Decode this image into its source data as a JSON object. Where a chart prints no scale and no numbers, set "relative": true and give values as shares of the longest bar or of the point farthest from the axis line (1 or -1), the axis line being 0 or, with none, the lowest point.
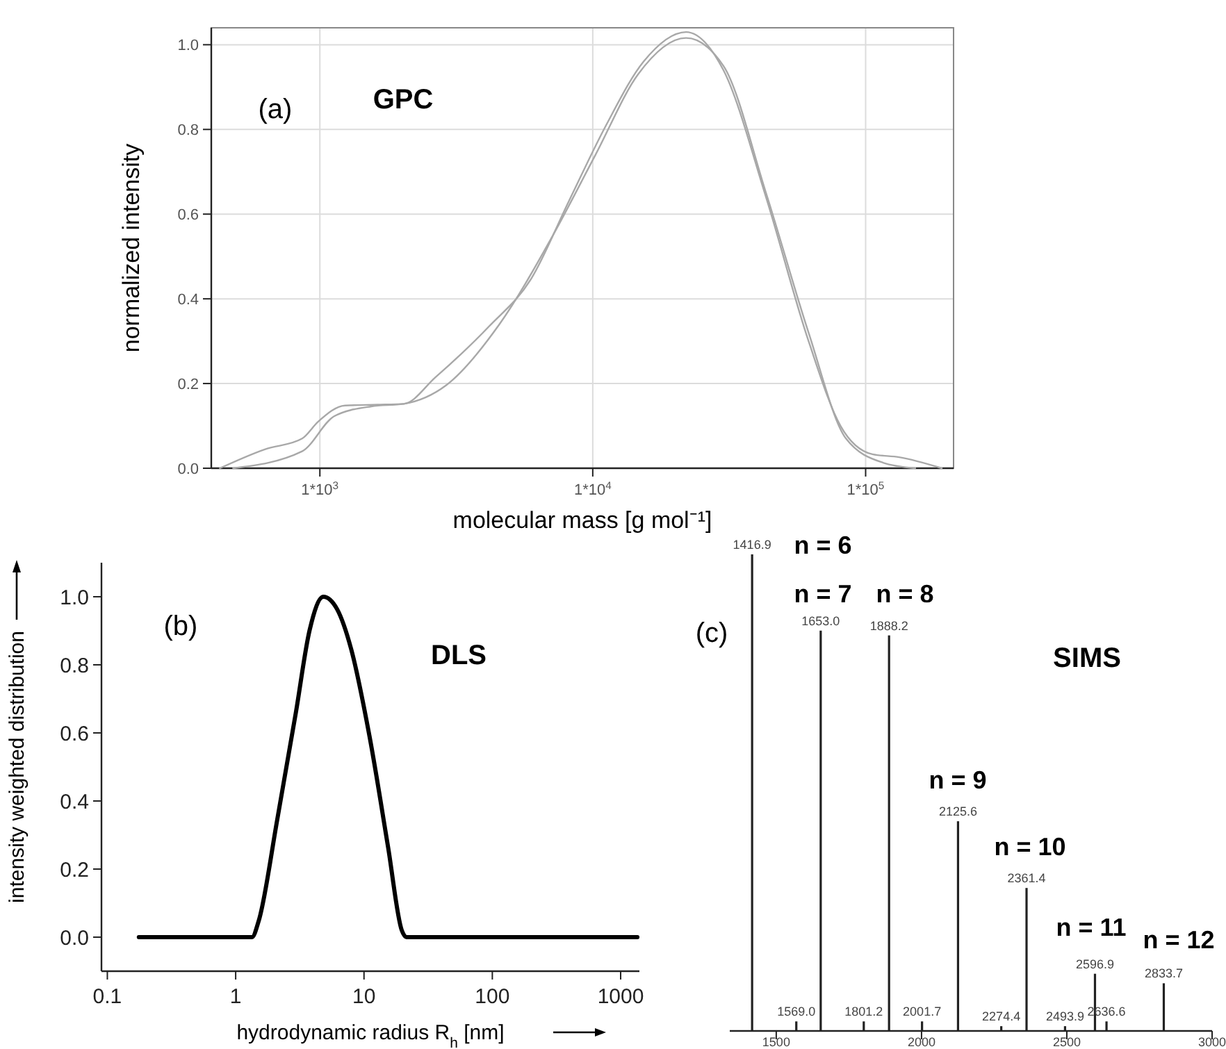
{
  "chart_data": [
    {
      "type": "line",
      "title": "GPC",
      "annotations": [
        "(a)"
      ],
      "xlabel": "molecular mass [g mol⁻¹]",
      "ylabel": "normalized intensity",
      "log": "x",
      "grid": true,
      "marker": "none",
      "line_style": "solid",
      "xlim": [
        400,
        210000
      ],
      "ylim": [
        0,
        1.04
      ],
      "xticks": [
        {
          "value": 1000,
          "label": "1*10$^{3}$"
        },
        {
          "value": 10000,
          "label": "1*10$^{4}$"
        },
        {
          "value": 100000,
          "label": "1*10$^{5}$"
        }
      ],
      "yticks": [
        {
          "value": 0,
          "label": "0.0"
        },
        {
          "value": 0.2,
          "label": "0.2"
        },
        {
          "value": 0.4,
          "label": "0.4"
        },
        {
          "value": 0.6,
          "label": "0.6"
        },
        {
          "value": 0.8,
          "label": "0.8"
        },
        {
          "value": 1,
          "label": "1.0"
        }
      ],
      "series": [
        {
          "color": "#a8a8a8",
          "x": [
            430,
            631,
            861,
            986,
            1236,
            1622,
            2028,
            2655,
            4169,
            5957,
            8166,
            11194,
            15346,
            21979,
            30130,
            43152,
            61802,
            80910,
            105925,
            132739,
            190108
          ],
          "values": [
            0,
            0.045,
            0.07,
            0.11,
            0.148,
            0.15,
            0.152,
            0.215,
            0.335,
            0.448,
            0.63,
            0.81,
            0.96,
            1.03,
            0.94,
            0.64,
            0.3,
            0.1,
            0.033,
            0.026,
            0
          ]
        },
        {
          "color": "#a8a8a8",
          "x": [
            481,
            861,
            1130,
            1545,
            2028,
            2904,
            4550,
            7145,
            10233,
            14655,
            21979,
            30130,
            43152,
            61802,
            84723,
            115878,
            152055
          ],
          "values": [
            0,
            0.04,
            0.123,
            0.146,
            0.152,
            0.196,
            0.34,
            0.55,
            0.74,
            0.93,
            1.016,
            0.95,
            0.65,
            0.32,
            0.07,
            0.013,
            0
          ]
        }
      ]
    },
    {
      "type": "line",
      "title": "DLS",
      "annotations": [
        "(b)"
      ],
      "xlabel": "hydrodynamic radius R$_{h}$ [nm]",
      "ylabel": "intensity weighted distribution",
      "log": "x",
      "marker": "none",
      "line_style": "solid",
      "xlim": [
        0.09,
        1400
      ],
      "ylim": [
        -0.1,
        1.1
      ],
      "xticks": [
        0.1,
        1,
        10,
        100,
        1000
      ],
      "yticks": [
        {
          "value": 0,
          "label": "0.0"
        },
        {
          "value": 0.2,
          "label": "0.2"
        },
        {
          "value": 0.4,
          "label": "0.4"
        },
        {
          "value": 0.6,
          "label": "0.6"
        },
        {
          "value": 0.8,
          "label": "0.8"
        },
        {
          "value": 1,
          "label": "1.0"
        }
      ],
      "series": [
        {
          "color": "#000000",
          "x": [
            0.176,
            1.34,
            1.51,
            2.11,
            2.94,
            3.77,
            4.82,
            6.18,
            7.92,
            11.04,
            15.4,
            19.7,
            21.4,
            1350
          ],
          "values": [
            0,
            0,
            0.047,
            0.346,
            0.658,
            0.902,
            1,
            0.963,
            0.848,
            0.59,
            0.265,
            0.02,
            0,
            0
          ]
        }
      ]
    },
    {
      "type": "bar",
      "title": "SIMS",
      "relative": true,
      "xlim": [
        1340,
        3000
      ],
      "xticks": [
        1500,
        2000,
        2500,
        3000
      ],
      "color": "#222222",
      "x": [
        1416.9,
        1569.0,
        1653.0,
        1801.2,
        1888.2,
        2001.7,
        2125.6,
        2274.4,
        2361.4,
        2493.9,
        2596.9,
        2636.6,
        2833.7
      ],
      "values": [
        1,
        0.02,
        0.84,
        0.02,
        0.83,
        0.02,
        0.44,
        0.01,
        0.3,
        0.01,
        0.12,
        0.02,
        0.1
      ],
      "annotations": [
        "(c)",
        "n = 6",
        "n = 7",
        "n = 8",
        "n = 9",
        "n = 10",
        "n = 11",
        "n = 12",
        {
          "text": "1416.9",
          "x": 1416.9,
          "y": 1
        },
        {
          "text": "1569.0",
          "x": 1569.0,
          "y": 0.02
        },
        {
          "text": "1653.0",
          "x": 1653.0,
          "y": 0.84
        },
        {
          "text": "1801.2",
          "x": 1801.2,
          "y": 0.02
        },
        {
          "text": "1888.2",
          "x": 1888.2,
          "y": 0.83
        },
        {
          "text": "2001.7",
          "x": 2001.7,
          "y": 0.02
        },
        {
          "text": "2125.6",
          "x": 2125.6,
          "y": 0.44
        },
        {
          "text": "2274.4",
          "x": 2274.4,
          "y": 0.01
        },
        {
          "text": "2361.4",
          "x": 2361.4,
          "y": 0.3
        },
        {
          "text": "2493.9",
          "x": 2493.9,
          "y": 0.01
        },
        {
          "text": "2596.9",
          "x": 2596.9,
          "y": 0.12
        },
        {
          "text": "2636.6",
          "x": 2636.6,
          "y": 0.02
        },
        {
          "text": "2833.7",
          "x": 2833.7,
          "y": 0.1
        }
      ]
    }
  ]
}
